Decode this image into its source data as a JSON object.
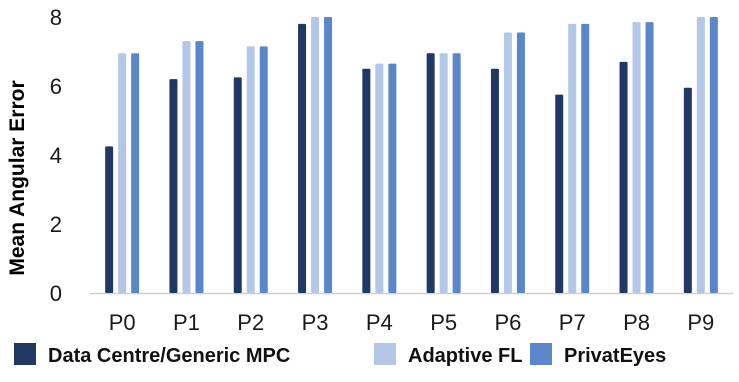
{
  "chart_data": {
    "type": "bar",
    "title": "",
    "xlabel": "",
    "ylabel": "Mean Angular Error",
    "ylim": [
      0,
      8
    ],
    "yticks": [
      0,
      2,
      4,
      6,
      8
    ],
    "grid": false,
    "legend_position": "bottom",
    "categories": [
      "P0",
      "P1",
      "P2",
      "P3",
      "P4",
      "P5",
      "P6",
      "P7",
      "P8",
      "P9"
    ],
    "series": [
      {
        "name": "Data Centre/Generic MPC",
        "color": "#203864",
        "values": [
          4.25,
          6.2,
          6.25,
          7.8,
          6.5,
          6.95,
          6.5,
          5.75,
          6.7,
          5.95
        ]
      },
      {
        "name": "Adaptive FL",
        "color": "#b4c7e7",
        "values": [
          6.95,
          7.3,
          7.15,
          8.0,
          6.65,
          6.95,
          7.55,
          7.8,
          7.85,
          8.0
        ]
      },
      {
        "name": "PrivatEyes",
        "color": "#5b87c9",
        "values": [
          6.95,
          7.3,
          7.15,
          8.0,
          6.65,
          6.95,
          7.55,
          7.8,
          7.85,
          8.0
        ]
      }
    ]
  }
}
